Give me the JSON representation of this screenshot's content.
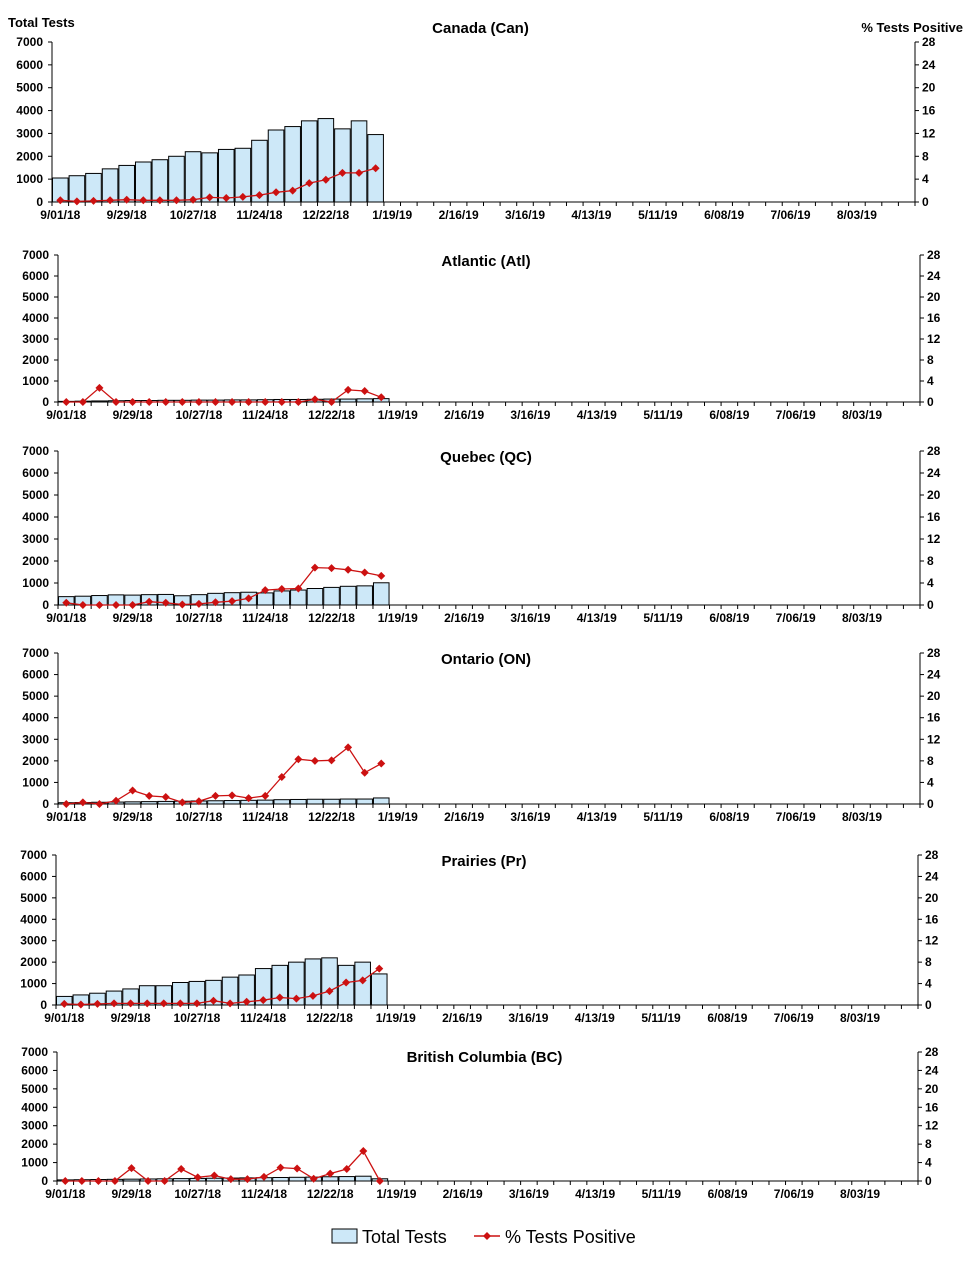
{
  "left_axis_title": "Total Tests",
  "right_axis_title": "% Tests Positive",
  "legend": {
    "bars": "Total Tests",
    "line": "% Tests Positive"
  },
  "colors": {
    "bar_fill": "#cde8f8",
    "bar_stroke": "#000000",
    "line": "#cc1111",
    "marker": "#cc1111"
  },
  "x_tick_labels": [
    "9/01/18",
    "9/29/18",
    "10/27/18",
    "11/24/18",
    "12/22/18",
    "1/19/19",
    "2/16/19",
    "3/16/19",
    "4/13/19",
    "5/11/19",
    "6/08/19",
    "7/06/19",
    "8/03/19"
  ],
  "y_left_ticks": [
    "0",
    "1000",
    "2000",
    "3000",
    "4000",
    "5000",
    "6000",
    "7000"
  ],
  "y_right_ticks": [
    "0",
    "4",
    "8",
    "12",
    "16",
    "20",
    "24",
    "28"
  ],
  "chart_data": [
    {
      "type": "bar",
      "title": "Canada (Can)",
      "ylim": [
        0,
        7000
      ],
      "y2lim": [
        0,
        28
      ],
      "weeks": 52,
      "series": [
        {
          "name": "Total Tests",
          "axis": "left",
          "values": [
            1050,
            1150,
            1250,
            1450,
            1600,
            1750,
            1850,
            2000,
            2200,
            2150,
            2300,
            2350,
            2700,
            3150,
            3300,
            3550,
            3650,
            3200,
            3550,
            2950
          ]
        },
        {
          "name": "% Tests Positive",
          "axis": "right",
          "values": [
            0.3,
            0.1,
            0.2,
            0.3,
            0.4,
            0.3,
            0.3,
            0.3,
            0.4,
            0.8,
            0.7,
            0.9,
            1.2,
            1.7,
            2.0,
            3.3,
            3.9,
            5.1,
            5.1,
            5.9
          ]
        }
      ]
    },
    {
      "type": "bar",
      "title": "Atlantic (Atl)",
      "ylim": [
        0,
        7000
      ],
      "y2lim": [
        0,
        28
      ],
      "weeks": 52,
      "series": [
        {
          "name": "Total Tests",
          "axis": "left",
          "values": [
            30,
            40,
            50,
            60,
            70,
            70,
            80,
            80,
            90,
            90,
            100,
            100,
            110,
            120,
            120,
            130,
            140,
            140,
            150,
            160
          ]
        },
        {
          "name": "% Tests Positive",
          "axis": "right",
          "values": [
            0,
            0,
            2.7,
            0,
            0,
            0,
            0,
            0,
            0,
            0,
            0,
            0,
            0,
            0,
            0,
            0.5,
            0,
            2.3,
            2.1,
            0.9
          ]
        }
      ]
    },
    {
      "type": "bar",
      "title": "Quebec (QC)",
      "ylim": [
        0,
        7000
      ],
      "y2lim": [
        0,
        28
      ],
      "weeks": 52,
      "series": [
        {
          "name": "Total Tests",
          "axis": "left",
          "values": [
            380,
            400,
            430,
            460,
            450,
            470,
            480,
            420,
            470,
            530,
            560,
            580,
            550,
            640,
            680,
            750,
            800,
            850,
            870,
            1010
          ]
        },
        {
          "name": "% Tests Positive",
          "axis": "right",
          "values": [
            0.4,
            0,
            0,
            0,
            0,
            0.6,
            0.4,
            0.1,
            0.2,
            0.5,
            0.7,
            1.2,
            2.7,
            2.9,
            3.0,
            6.8,
            6.7,
            6.4,
            5.9,
            5.3
          ]
        }
      ]
    },
    {
      "type": "bar",
      "title": "Ontario (ON)",
      "ylim": [
        0,
        7000
      ],
      "y2lim": [
        0,
        28
      ],
      "weeks": 52,
      "series": [
        {
          "name": "Total Tests",
          "axis": "left",
          "values": [
            60,
            70,
            80,
            90,
            100,
            110,
            120,
            130,
            140,
            150,
            160,
            170,
            180,
            200,
            210,
            220,
            220,
            230,
            230,
            280
          ]
        },
        {
          "name": "% Tests Positive",
          "axis": "right",
          "values": [
            0,
            0.3,
            0,
            0.6,
            2.5,
            1.5,
            1.3,
            0.3,
            0.5,
            1.5,
            1.6,
            1.1,
            1.5,
            5.0,
            8.3,
            8.0,
            8.1,
            10.5,
            5.8,
            7.5
          ]
        }
      ]
    },
    {
      "type": "bar",
      "title": "Prairies (Pr)",
      "ylim": [
        0,
        7000
      ],
      "y2lim": [
        0,
        28
      ],
      "weeks": 52,
      "series": [
        {
          "name": "Total Tests",
          "axis": "left",
          "values": [
            400,
            470,
            550,
            650,
            750,
            900,
            900,
            1050,
            1100,
            1150,
            1300,
            1400,
            1700,
            1850,
            2000,
            2150,
            2200,
            1850,
            2000,
            1450
          ]
        },
        {
          "name": "% Tests Positive",
          "axis": "right",
          "values": [
            0.2,
            0.1,
            0.2,
            0.3,
            0.3,
            0.3,
            0.3,
            0.3,
            0.3,
            0.8,
            0.3,
            0.6,
            0.9,
            1.4,
            1.2,
            1.7,
            2.6,
            4.2,
            4.6,
            6.8
          ]
        }
      ]
    },
    {
      "type": "bar",
      "title": "British Columbia (BC)",
      "ylim": [
        0,
        7000
      ],
      "y2lim": [
        0,
        28
      ],
      "weeks": 52,
      "series": [
        {
          "name": "Total Tests",
          "axis": "left",
          "values": [
            60,
            70,
            80,
            90,
            100,
            110,
            120,
            130,
            140,
            150,
            160,
            170,
            180,
            190,
            200,
            210,
            230,
            240,
            260,
            120
          ]
        },
        {
          "name": "% Tests Positive",
          "axis": "right",
          "values": [
            0,
            0,
            0,
            0,
            2.8,
            0,
            0,
            2.6,
            0.8,
            1.2,
            0.4,
            0.4,
            0.9,
            2.9,
            2.7,
            0.5,
            1.6,
            2.6,
            6.5,
            0
          ]
        }
      ]
    }
  ]
}
